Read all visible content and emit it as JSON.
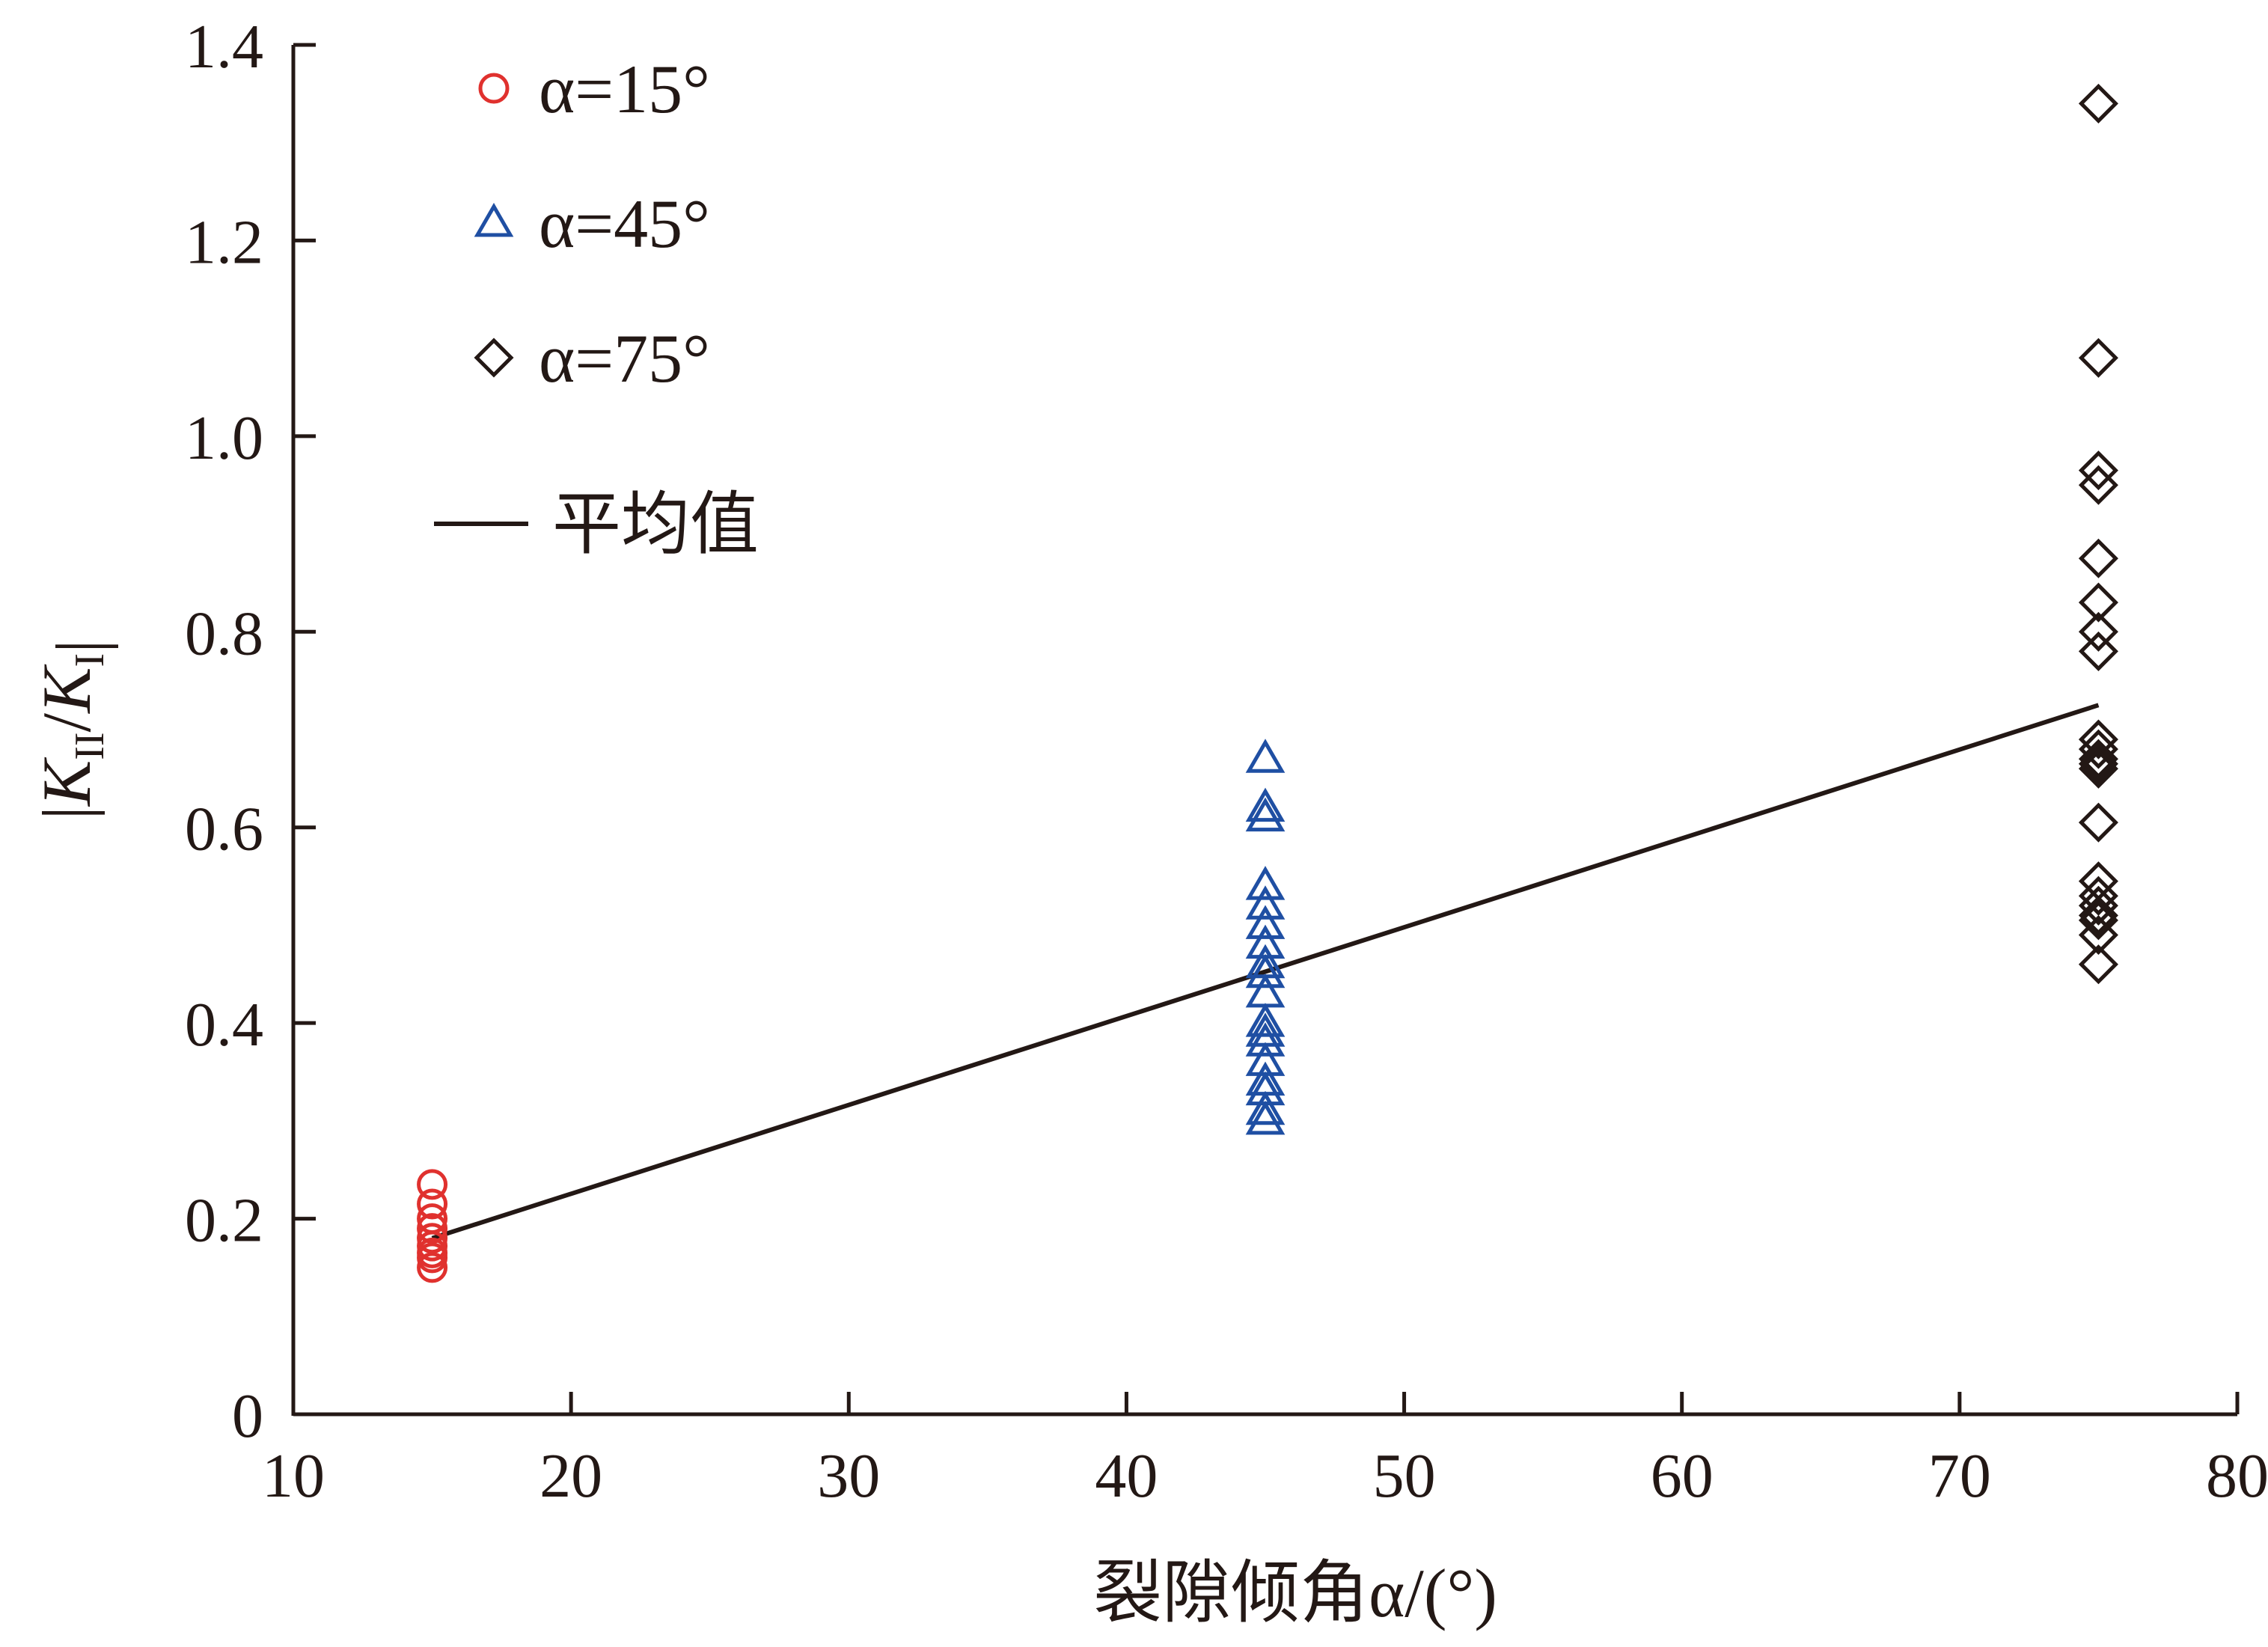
{
  "chart_data": {
    "type": "scatter",
    "xlabel": "裂隙倾角α/(°)",
    "ylabel": "|K_II/K_I|",
    "xlim": [
      10,
      80
    ],
    "ylim": [
      0,
      1.4
    ],
    "x_ticks": [
      10,
      20,
      30,
      40,
      50,
      60,
      70,
      80
    ],
    "y_ticks": [
      0,
      0.2,
      0.4,
      0.6,
      0.8,
      1.0,
      1.2,
      1.4
    ],
    "y_tick_labels": [
      "0",
      "0.2",
      "0.4",
      "0.6",
      "0.8",
      "1.0",
      "1.2",
      "1.4"
    ],
    "grid": false,
    "legend_position": "top-left",
    "series": [
      {
        "name": "α=15°",
        "marker": "circle",
        "color": "#e0312e",
        "x": 15,
        "y": [
          0.235,
          0.215,
          0.2,
          0.19,
          0.18,
          0.172,
          0.165,
          0.16,
          0.15
        ]
      },
      {
        "name": "α=45°",
        "marker": "triangle",
        "color": "#1f4fa3",
        "x": 45,
        "y": [
          0.67,
          0.62,
          0.61,
          0.54,
          0.52,
          0.5,
          0.48,
          0.46,
          0.45,
          0.43,
          0.4,
          0.39,
          0.38,
          0.36,
          0.34,
          0.33,
          0.31,
          0.3
        ]
      },
      {
        "name": "α=75°",
        "marker": "diamond",
        "color": "#231815",
        "x": 75,
        "y": [
          1.34,
          1.08,
          0.965,
          0.95,
          0.875,
          0.83,
          0.8,
          0.78,
          0.69,
          0.68,
          0.67,
          0.665,
          0.66,
          0.605,
          0.545,
          0.53,
          0.52,
          0.51,
          0.505,
          0.49,
          0.46
        ]
      }
    ],
    "mean_line": {
      "name": "平均值",
      "color": "#231815",
      "x": [
        15,
        75
      ],
      "y": [
        0.18,
        0.725
      ]
    }
  }
}
